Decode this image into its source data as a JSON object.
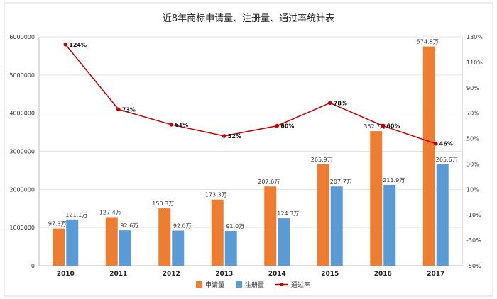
{
  "chart_data": {
    "type": "bar",
    "title": "近8年商标申请量、注册量、通过率统计表",
    "categories": [
      "2010",
      "2011",
      "2012",
      "2013",
      "2014",
      "2015",
      "2016",
      "2017"
    ],
    "series": [
      {
        "name": "申请量",
        "type": "bar",
        "axis": "left",
        "color": "#ED7D31",
        "values": [
          973000,
          1274000,
          1503000,
          1733000,
          2076000,
          2659000,
          3527000,
          5748000
        ],
        "labels": [
          "97.3万",
          "127.4万",
          "150.3万",
          "173.3万",
          "207.6万",
          "265.9万",
          "352.7万",
          "574.8万"
        ]
      },
      {
        "name": "注册量",
        "type": "bar",
        "axis": "left",
        "color": "#5B9BD5",
        "values": [
          1211000,
          926000,
          920000,
          910000,
          1243000,
          2077000,
          2119000,
          2656000
        ],
        "labels": [
          "121.1万",
          "92.6万",
          "92.0万",
          "91.0万",
          "124.3万",
          "207.7万",
          "211.9万",
          "265.6万"
        ]
      },
      {
        "name": "通过率",
        "type": "line",
        "axis": "right",
        "color": "#C00000",
        "values": [
          124,
          73,
          61,
          52,
          60,
          78,
          60,
          46
        ],
        "labels": [
          "124%",
          "73%",
          "61%",
          "52%",
          "60%",
          "78%",
          "60%",
          "46%"
        ]
      }
    ],
    "y_left": {
      "min": 0,
      "max": 6000000,
      "ticks": [
        0,
        1000000,
        2000000,
        3000000,
        4000000,
        5000000,
        6000000
      ],
      "tick_labels": [
        "0",
        "1000000",
        "2000000",
        "3000000",
        "4000000",
        "5000000",
        "6000000"
      ]
    },
    "y_right": {
      "min": -50,
      "max": 130,
      "ticks": [
        -50,
        -30,
        -10,
        10,
        30,
        50,
        70,
        90,
        110,
        130
      ],
      "tick_labels": [
        "-50%",
        "-30%",
        "-10%",
        "10%",
        "30%",
        "50%",
        "70%",
        "90%",
        "110%",
        "130%"
      ]
    },
    "grid": true,
    "legend": "bottom"
  }
}
